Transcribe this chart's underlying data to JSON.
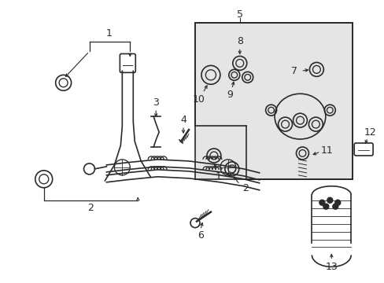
{
  "bg_color": "#ffffff",
  "inset_bg": "#e8e8e8",
  "line_color": "#2a2a2a",
  "fig_width": 4.89,
  "fig_height": 3.6,
  "dpi": 100
}
